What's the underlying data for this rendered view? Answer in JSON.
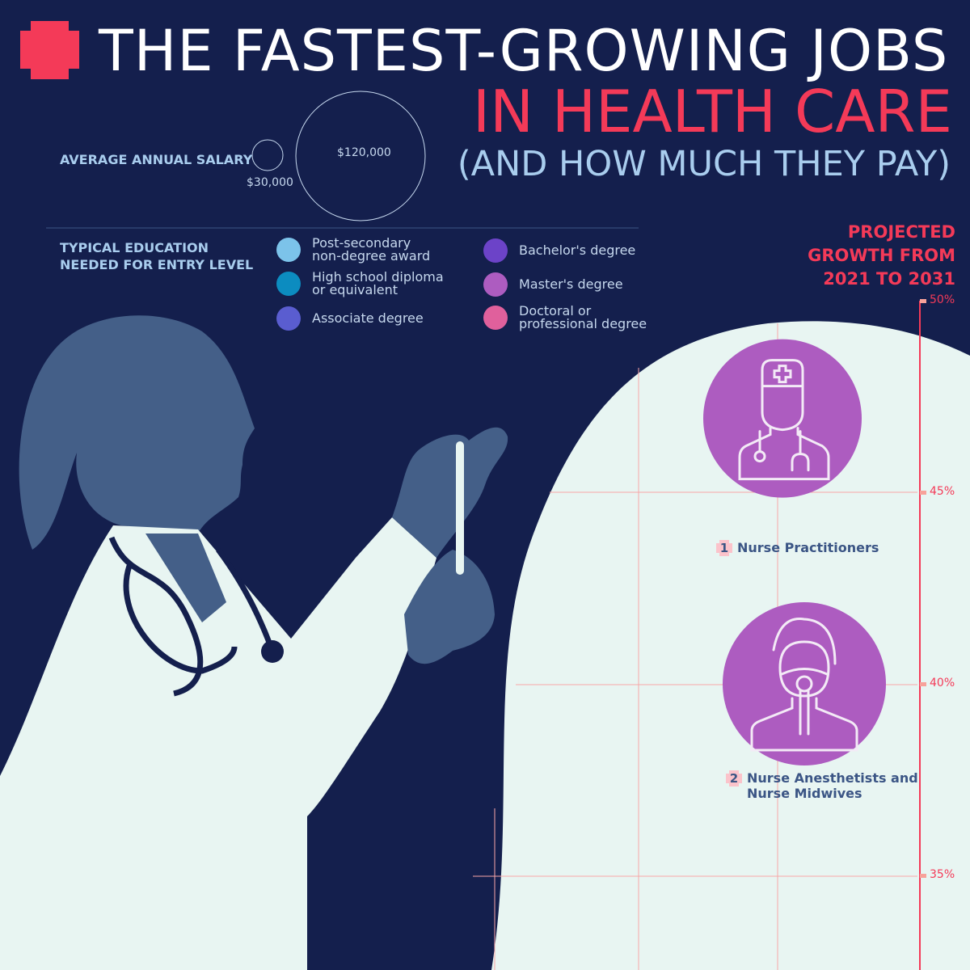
{
  "header": {
    "title_line1": "THE FASTEST-GROWING JOBS",
    "title_line2": "IN HEALTH CARE",
    "title_line3": "(AND HOW MUCH THEY PAY)",
    "logo_icon": "medical-cross-icon"
  },
  "salary_legend": {
    "label": "AVERAGE ANNUAL SALARY",
    "small": "$30,000",
    "large": "$120,000"
  },
  "education_legend": {
    "label_line1": "TYPICAL EDUCATION",
    "label_line2": "NEEDED FOR ENTRY LEVEL",
    "items": [
      {
        "line1": "Post-secondary",
        "line2": "non-degree award",
        "color": "#7cc3ea"
      },
      {
        "line1": "High school diploma",
        "line2": "or equivalent",
        "color": "#0c8cc0"
      },
      {
        "line1": "Associate degree",
        "line2": "",
        "color": "#5a5dd0"
      },
      {
        "line1": "Bachelor's degree",
        "line2": "",
        "color": "#6c43c8"
      },
      {
        "line1": "Master's degree",
        "line2": "",
        "color": "#ad5cc0"
      },
      {
        "line1": "Doctoral or",
        "line2": "professional degree",
        "color": "#e0609c"
      }
    ]
  },
  "axis": {
    "title_line1": "PROJECTED",
    "title_line2": "GROWTH FROM",
    "title_line3": "2021 TO 2031",
    "ticks": [
      "50%",
      "45%",
      "40%",
      "35%"
    ]
  },
  "colors": {
    "background": "#141f4d",
    "panel": "#e8f5f2",
    "accent": "#f43a58",
    "silhouette": "#445f88"
  },
  "chart_data": {
    "type": "scatter",
    "title": "THE FASTEST-GROWING JOBS IN HEALTH CARE (AND HOW MUCH THEY PAY)",
    "ylabel": "PROJECTED GROWTH FROM 2021 TO 2031",
    "ylim": [
      33,
      50
    ],
    "yticks": [
      50,
      45,
      40,
      35
    ],
    "grid": true,
    "points": [
      {
        "rank": "1",
        "name": "Nurse Practitioners",
        "growth": 46,
        "education": "Master's degree",
        "icon": "doctor-with-stethoscope-icon"
      },
      {
        "rank": "2",
        "name_line1": "Nurse Anesthetists and",
        "name_line2": "Nurse Midwives",
        "growth": 40,
        "education": "Master's degree",
        "icon": "patient-with-oxygen-mask-icon"
      }
    ]
  }
}
